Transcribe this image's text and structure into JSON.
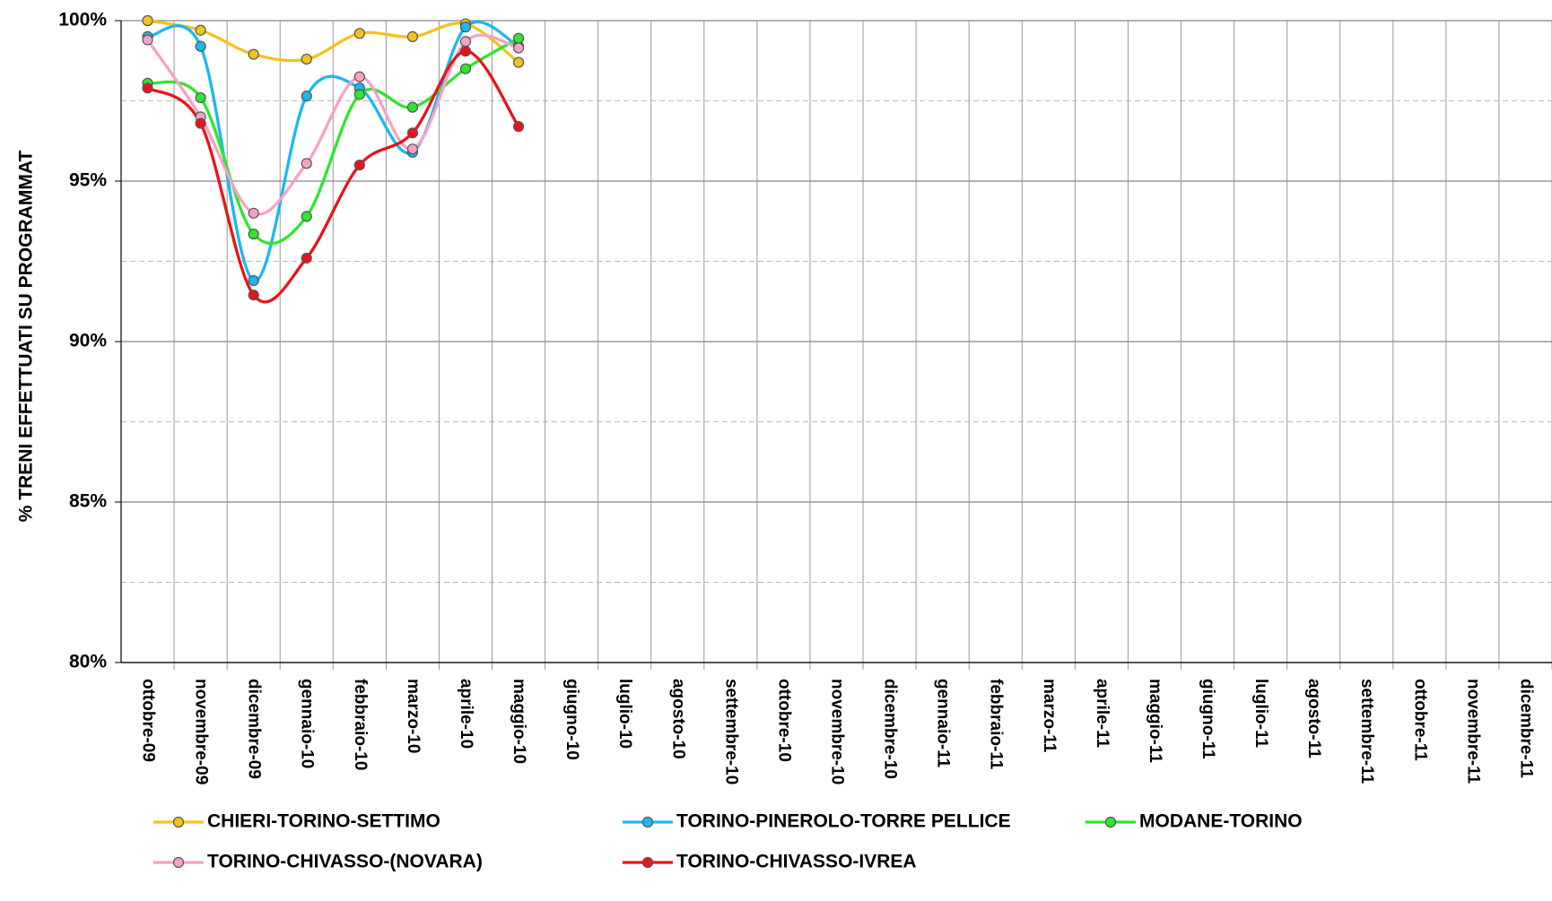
{
  "chart_data": {
    "type": "line",
    "ylabel": "% TRENI EFFETTUATI SU PROGRAMMAT",
    "categories": [
      "ottobre-09",
      "novembre-09",
      "dicembre-09",
      "gennaio-10",
      "febbraio-10",
      "marzo-10",
      "aprile-10",
      "maggio-10",
      "giugno-10",
      "luglio-10",
      "agosto-10",
      "settembre-10",
      "ottobre-10",
      "novembre-10",
      "dicembre-10",
      "gennaio-11",
      "febbraio-11",
      "marzo-11",
      "aprile-11",
      "maggio-11",
      "giugno-11",
      "luglio-11",
      "agosto-11",
      "settembre-11",
      "ottobre-11",
      "novembre-11",
      "dicembre-11"
    ],
    "series": [
      {
        "name": "CHIERI-TORINO-SETTIMO",
        "color": "#f5c21b",
        "values": [
          100,
          99.7,
          98.95,
          98.8,
          99.6,
          99.5,
          99.9,
          98.7,
          null,
          null,
          null,
          null,
          null,
          null,
          null,
          null,
          null,
          null,
          null,
          null,
          null,
          null,
          null,
          null,
          null,
          null,
          null
        ]
      },
      {
        "name": "TORINO-PINEROLO-TORRE PELLICE",
        "color": "#1ab8ef",
        "values": [
          99.5,
          99.2,
          91.9,
          97.65,
          97.9,
          95.9,
          99.8,
          99.2,
          null,
          null,
          null,
          null,
          null,
          null,
          null,
          null,
          null,
          null,
          null,
          null,
          null,
          null,
          null,
          null,
          null,
          null,
          null
        ]
      },
      {
        "name": "MODANE-TORINO",
        "color": "#2ee62e",
        "values": [
          98.05,
          97.6,
          93.35,
          93.9,
          97.7,
          97.3,
          98.5,
          99.45,
          null,
          null,
          null,
          null,
          null,
          null,
          null,
          null,
          null,
          null,
          null,
          null,
          null,
          null,
          null,
          null,
          null,
          null,
          null
        ]
      },
      {
        "name": "TORINO-CHIVASSO-(NOVARA)",
        "color": "#f7a1c8",
        "values": [
          99.4,
          97.0,
          94.0,
          95.55,
          98.25,
          96.0,
          99.35,
          99.15,
          null,
          null,
          null,
          null,
          null,
          null,
          null,
          null,
          null,
          null,
          null,
          null,
          null,
          null,
          null,
          null,
          null,
          null,
          null
        ]
      },
      {
        "name": "TORINO-CHIVASSO-IVREA",
        "color": "#e8141a",
        "values": [
          97.9,
          96.8,
          91.45,
          92.6,
          95.5,
          96.5,
          99.05,
          96.7,
          null,
          null,
          null,
          null,
          null,
          null,
          null,
          null,
          null,
          null,
          null,
          null,
          null,
          null,
          null,
          null,
          null,
          null,
          null
        ]
      }
    ],
    "ylim": [
      80,
      100
    ],
    "yticks": [
      {
        "value": 80,
        "label": "80%"
      },
      {
        "value": 85,
        "label": "85%"
      },
      {
        "value": 90,
        "label": "90%"
      },
      {
        "value": 95,
        "label": "95%"
      },
      {
        "value": 100,
        "label": "100%"
      }
    ],
    "minor_yticks": [
      82.5,
      87.5,
      92.5,
      97.5
    ],
    "grid": true,
    "smooth": true,
    "legend": "bottom"
  }
}
